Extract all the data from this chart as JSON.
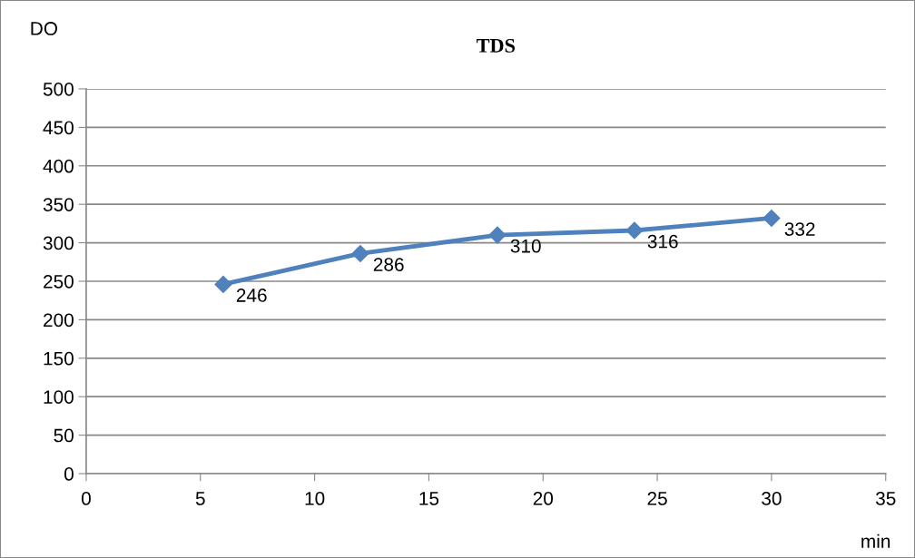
{
  "chart_data": {
    "type": "line",
    "title": "TDS",
    "xlabel": "min",
    "ylabel": "DO",
    "x": [
      6,
      12,
      18,
      24,
      30
    ],
    "series": [
      {
        "color": "#4f81bd",
        "values": [
          246,
          286,
          310,
          316,
          332
        ]
      }
    ],
    "xlim": [
      0,
      35
    ],
    "xticks": [
      0,
      5,
      10,
      15,
      20,
      25,
      30,
      35
    ],
    "ylim": [
      0,
      500
    ],
    "yticks": [
      0,
      50,
      100,
      150,
      200,
      250,
      300,
      350,
      400,
      450,
      500
    ],
    "grid": "y",
    "marker": "diamond",
    "line_style": "solid",
    "data_labels": true,
    "legend": false
  }
}
